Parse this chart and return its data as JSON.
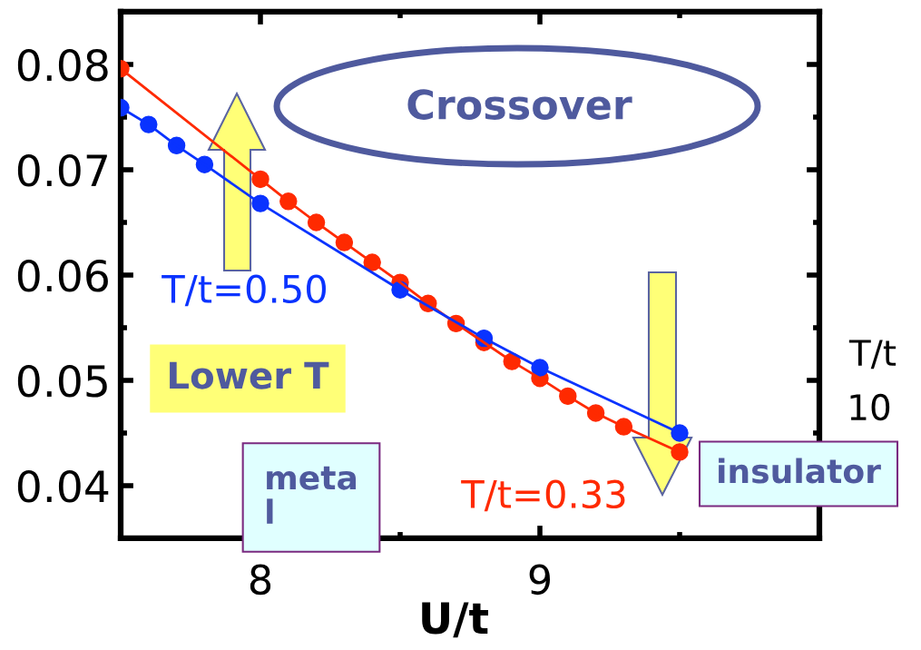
{
  "chart_data": {
    "type": "line",
    "xlabel": "U/t",
    "xlim": [
      7.5,
      10
    ],
    "xticks": [
      8,
      {
        "value": 8.5,
        "label": null
      },
      9,
      {
        "value": 9.5,
        "label": null
      }
    ],
    "ylim": [
      0.035,
      0.085
    ],
    "yticks": [
      0.04,
      {
        "value": 0.045,
        "label": null
      },
      0.05,
      {
        "value": 0.055,
        "label": null
      },
      0.06,
      {
        "value": 0.065,
        "label": null
      },
      0.07,
      {
        "value": 0.075,
        "label": null
      },
      0.08
    ],
    "marker": "circle",
    "line_style": "solid",
    "series": [
      {
        "name": "T/t=0.33",
        "color": "#ff2a00",
        "x": [
          7.5,
          8.0,
          8.1,
          8.2,
          8.3,
          8.4,
          8.5,
          8.6,
          8.7,
          8.8,
          8.9,
          9.0,
          9.1,
          9.2,
          9.3,
          9.5
        ],
        "values": [
          0.0796,
          0.0691,
          0.067,
          0.065,
          0.0631,
          0.0612,
          0.0593,
          0.0573,
          0.0554,
          0.0536,
          0.0518,
          0.0502,
          0.0485,
          0.0469,
          0.0456,
          0.0432
        ]
      },
      {
        "name": "T/t=0.50",
        "color": "#0a33ff",
        "x": [
          7.5,
          7.6,
          7.7,
          7.8,
          8.0,
          8.5,
          8.8,
          9.0,
          9.5
        ],
        "values": [
          0.0759,
          0.0743,
          0.0723,
          0.0705,
          0.0668,
          0.0586,
          0.054,
          0.0512,
          0.045
        ]
      }
    ],
    "annotations": [
      "Crossover",
      "Lower T",
      "meta\nl",
      "insulator",
      "T/t",
      "10"
    ]
  }
}
